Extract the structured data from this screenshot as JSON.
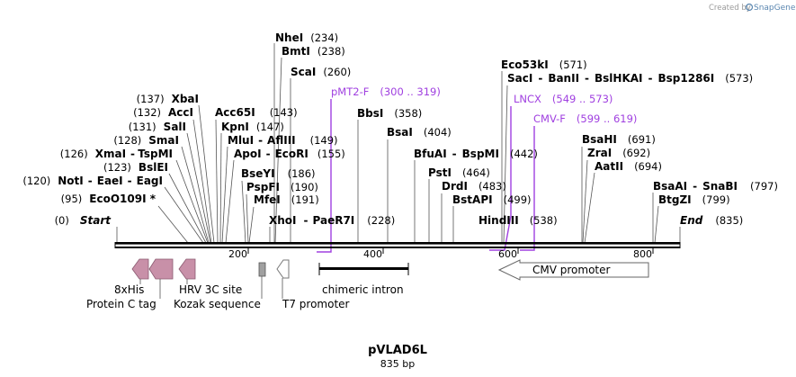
{
  "watermark": {
    "text": "Created by",
    "brand": "SnapGene"
  },
  "map": {
    "title": "pVLAD6L",
    "length_label": "835 bp",
    "ticks": [
      "200",
      "400",
      "600",
      "800"
    ]
  },
  "sites": [
    {
      "name": "NheI",
      "pos": "(234)"
    },
    {
      "name": "BmtI",
      "pos": "(238)"
    },
    {
      "name": "ScaI",
      "pos": "(260)"
    },
    {
      "name": "XbaI",
      "pos": "(137)"
    },
    {
      "name": "AccI",
      "pos": "(132)"
    },
    {
      "name": "SalI",
      "pos": "(131)"
    },
    {
      "name": "SmaI",
      "pos": "(128)"
    },
    {
      "name": "XmaI",
      "sep": "-",
      "name2": "TspMI",
      "pos": "(126)"
    },
    {
      "name": "BslEI",
      "pos": "(123)"
    },
    {
      "name": "NotI",
      "sep": "-",
      "name2": "EaeI",
      "sep2": "-",
      "name3": "EagI",
      "pos": "(120)"
    },
    {
      "name": "EcoO109I *",
      "pos": "(95)"
    },
    {
      "name": "Start",
      "pos": "(0)"
    },
    {
      "name": "Acc65I",
      "pos": "(143)"
    },
    {
      "name": "KpnI",
      "pos": "(147)"
    },
    {
      "name": "MluI",
      "sep": "-",
      "name2": "AflIII",
      "pos": "(149)"
    },
    {
      "name": "ApoI",
      "sep": "-",
      "name2": "EcoRI",
      "pos": "(155)"
    },
    {
      "name": "BseYI",
      "pos": "(186)"
    },
    {
      "name": "PspFI",
      "pos": "(190)"
    },
    {
      "name": "MfeI",
      "pos": "(191)"
    },
    {
      "name": "XhoI",
      "sep": "-",
      "name2": "PaeR7I",
      "pos": "(228)"
    },
    {
      "name": "BbsI",
      "pos": "(358)"
    },
    {
      "name": "BsaI",
      "pos": "(404)"
    },
    {
      "name": "BfuAI",
      "sep": "-",
      "name2": "BspMI",
      "pos": "(442)"
    },
    {
      "name": "PstI",
      "pos": "(464)"
    },
    {
      "name": "DrdI",
      "pos": "(483)"
    },
    {
      "name": "BstAPI",
      "pos": "(499)"
    },
    {
      "name": "HindIII",
      "pos": "(538)"
    },
    {
      "name": "Eco53kI",
      "pos": "(571)"
    },
    {
      "name": "SacI",
      "sep": "-",
      "name2": "BanII",
      "sep2": "-",
      "name3": "BslHKAI",
      "sep3": "-",
      "name4": "Bsp1286I",
      "pos": "(573)"
    },
    {
      "name": "BsaHI",
      "pos": "(691)"
    },
    {
      "name": "ZraI",
      "pos": "(692)"
    },
    {
      "name": "AatII",
      "pos": "(694)"
    },
    {
      "name": "BsaAI",
      "sep": "-",
      "name2": "SnaBI",
      "pos": "(797)"
    },
    {
      "name": "BtgZI",
      "pos": "(799)"
    },
    {
      "name": "End",
      "pos": "(835)"
    }
  ],
  "primers": [
    {
      "name": "pMT2-F",
      "range": "(300 .. 319)"
    },
    {
      "name": "LNCX",
      "range": "(549 .. 573)"
    },
    {
      "name": "CMV-F",
      "range": "(599 .. 619)"
    }
  ],
  "features": {
    "his": "8xHis",
    "proteinc": "Protein C tag",
    "hrv": "HRV 3C site",
    "kozak": "Kozak sequence",
    "t7": "T7 promoter",
    "intron": "chimeric intron",
    "cmv": "CMV promoter"
  },
  "colors": {
    "feature_pink": "#c890a8",
    "kozak_gray": "#a0a0a0",
    "primer_purple": "#a040e0",
    "backbone": "#000000"
  }
}
